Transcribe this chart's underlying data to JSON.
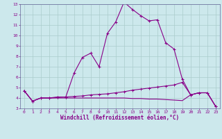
{
  "title": "",
  "xlabel": "Windchill (Refroidissement éolien,°C)",
  "bg_color": "#cce8ec",
  "line_color": "#880088",
  "grid_color": "#aacccc",
  "spine_color": "#666699",
  "xlim": [
    -0.5,
    23.5
  ],
  "ylim": [
    3,
    13
  ],
  "yticks": [
    3,
    4,
    5,
    6,
    7,
    8,
    9,
    10,
    11,
    12,
    13
  ],
  "xticks": [
    0,
    1,
    2,
    3,
    4,
    5,
    6,
    7,
    8,
    9,
    10,
    11,
    12,
    13,
    14,
    15,
    16,
    17,
    18,
    19,
    20,
    21,
    22,
    23
  ],
  "line1_x": [
    0,
    1,
    2,
    3,
    4,
    5,
    6,
    7,
    8,
    9,
    10,
    11,
    12,
    13,
    14,
    15,
    16,
    17,
    18,
    19,
    20,
    21,
    22,
    23
  ],
  "line1_y": [
    4.7,
    3.7,
    4.0,
    4.0,
    4.1,
    4.1,
    6.4,
    7.9,
    8.3,
    7.0,
    10.2,
    11.3,
    13.2,
    12.5,
    11.9,
    11.4,
    11.5,
    9.3,
    8.7,
    5.8,
    4.3,
    4.5,
    4.5,
    3.2
  ],
  "line2_x": [
    0,
    1,
    2,
    3,
    4,
    5,
    6,
    7,
    8,
    9,
    10,
    11,
    12,
    13,
    14,
    15,
    16,
    17,
    18,
    19,
    20,
    21,
    22,
    23
  ],
  "line2_y": [
    4.7,
    3.7,
    4.0,
    4.0,
    4.05,
    4.1,
    4.15,
    4.2,
    4.3,
    4.35,
    4.4,
    4.5,
    4.6,
    4.75,
    4.85,
    4.95,
    5.05,
    5.15,
    5.25,
    5.5,
    4.3,
    4.5,
    4.5,
    3.2
  ],
  "line3_x": [
    0,
    1,
    2,
    3,
    4,
    5,
    6,
    7,
    8,
    9,
    10,
    11,
    12,
    13,
    14,
    15,
    16,
    17,
    18,
    19,
    20,
    21,
    22,
    23
  ],
  "line3_y": [
    4.7,
    3.7,
    4.0,
    4.0,
    4.0,
    4.0,
    4.0,
    4.0,
    4.0,
    4.0,
    4.0,
    4.0,
    4.0,
    3.95,
    3.95,
    3.9,
    3.9,
    3.85,
    3.8,
    3.75,
    4.3,
    4.5,
    4.5,
    3.2
  ]
}
